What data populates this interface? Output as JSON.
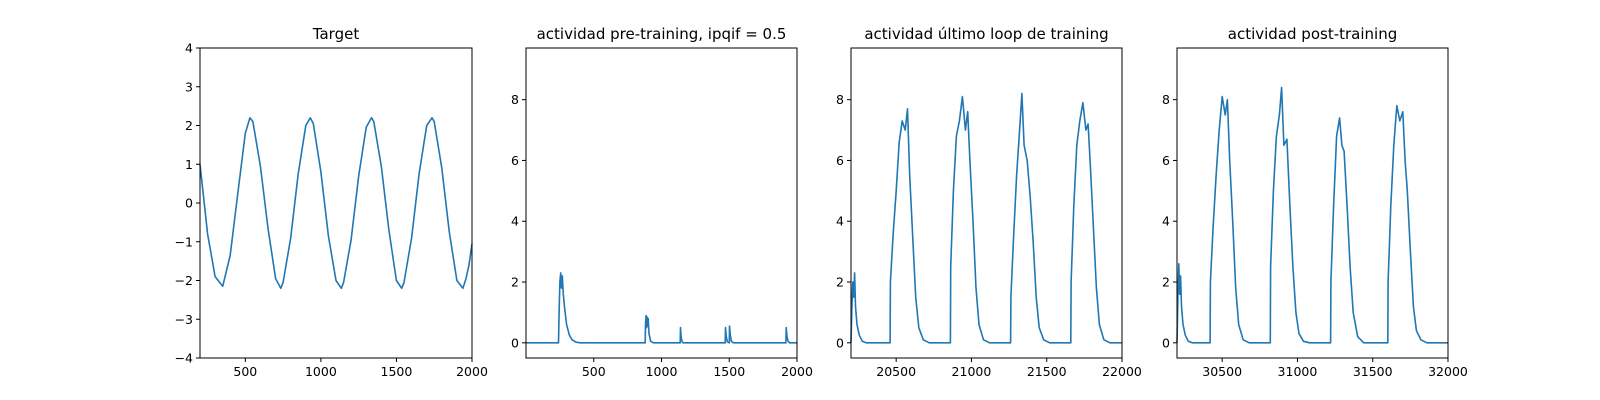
{
  "chart_data": [
    {
      "type": "line",
      "title": "Target",
      "xlim": [
        200,
        2000
      ],
      "ylim": [
        -4,
        4
      ],
      "xticks": [
        500,
        1000,
        1500,
        2000
      ],
      "yticks": [
        -4,
        -3,
        -2,
        -1,
        0,
        1,
        2,
        3,
        4
      ],
      "x": [
        200,
        250,
        300,
        350,
        400,
        450,
        500,
        530,
        550,
        600,
        650,
        700,
        735,
        750,
        800,
        850,
        900,
        930,
        950,
        1000,
        1050,
        1100,
        1135,
        1150,
        1200,
        1250,
        1300,
        1335,
        1350,
        1400,
        1450,
        1500,
        1535,
        1550,
        1600,
        1650,
        1700,
        1735,
        1750,
        1800,
        1850,
        1900,
        1940,
        1960,
        1980,
        2000
      ],
      "series": [
        {
          "color": "#1f77b4",
          "values": [
            1.0,
            -0.8,
            -1.9,
            -2.15,
            -1.35,
            0.25,
            1.8,
            2.2,
            2.1,
            0.95,
            -0.65,
            -1.95,
            -2.2,
            -2.05,
            -0.9,
            0.75,
            2.0,
            2.2,
            2.05,
            0.8,
            -0.85,
            -2.0,
            -2.2,
            -2.05,
            -0.95,
            0.7,
            1.95,
            2.2,
            2.1,
            0.95,
            -0.7,
            -2.0,
            -2.2,
            -2.05,
            -0.9,
            0.75,
            2.0,
            2.2,
            2.1,
            0.9,
            -0.75,
            -2.0,
            -2.2,
            -1.95,
            -1.6,
            -1.05
          ]
        }
      ]
    },
    {
      "type": "line",
      "title": "actividad pre-training, ipqif = 0.5",
      "xlim": [
        0,
        2000
      ],
      "ylim": [
        -0.5,
        9.7
      ],
      "xticks": [
        500,
        1000,
        1500,
        2000
      ],
      "yticks": [
        0,
        2,
        4,
        6,
        8
      ],
      "x": [
        0,
        240,
        244,
        250,
        256,
        262,
        268,
        275,
        285,
        300,
        320,
        340,
        370,
        400,
        440,
        880,
        882,
        886,
        890,
        894,
        898,
        902,
        908,
        920,
        940,
        1138,
        1140,
        1145,
        1152,
        1160,
        1470,
        1472,
        1478,
        1486,
        1500,
        1502,
        1508,
        1516,
        1530,
        1918,
        1920,
        1926,
        1934,
        1945,
        2000
      ],
      "series": [
        {
          "color": "#1f77b4",
          "values": [
            0,
            0,
            1.0,
            2.0,
            2.3,
            1.8,
            2.2,
            1.6,
            1.15,
            0.6,
            0.25,
            0.1,
            0.02,
            0,
            0,
            0,
            0.6,
            0.9,
            0.5,
            0.85,
            0.55,
            0.8,
            0.3,
            0.05,
            0,
            0,
            0.5,
            0.2,
            0.04,
            0,
            0,
            0.5,
            0.2,
            0.03,
            0,
            0.55,
            0.25,
            0.05,
            0,
            0,
            0.5,
            0.2,
            0.05,
            0,
            0
          ]
        }
      ]
    },
    {
      "type": "line",
      "title": "actividad último loop de training",
      "xlim": [
        20200,
        22000
      ],
      "ylim": [
        -0.5,
        9.7
      ],
      "xticks": [
        20500,
        21000,
        21500,
        22000
      ],
      "yticks": [
        0,
        2,
        4,
        6,
        8
      ],
      "x": [
        20200,
        20206,
        20212,
        20218,
        20224,
        20230,
        20240,
        20255,
        20275,
        20300,
        20460,
        20462,
        20480,
        20500,
        20520,
        20540,
        20560,
        20575,
        20590,
        20610,
        20630,
        20650,
        20680,
        20720,
        20860,
        20862,
        20880,
        20900,
        20920,
        20940,
        20960,
        20975,
        20990,
        21010,
        21030,
        21050,
        21080,
        21120,
        21260,
        21262,
        21280,
        21300,
        21320,
        21335,
        21350,
        21370,
        21390,
        21410,
        21430,
        21450,
        21480,
        21520,
        21660,
        21662,
        21680,
        21700,
        21720,
        21740,
        21760,
        21775,
        21790,
        21810,
        21830,
        21850,
        21880,
        21920,
        22000
      ],
      "series": [
        {
          "color": "#1f77b4",
          "values": [
            0,
            1.2,
            2.0,
            1.5,
            2.3,
            1.2,
            0.6,
            0.25,
            0.05,
            0,
            0,
            2.0,
            3.6,
            5.0,
            6.6,
            7.3,
            7.0,
            7.7,
            5.5,
            3.5,
            1.5,
            0.5,
            0.1,
            0,
            0,
            2.5,
            5.0,
            6.8,
            7.3,
            8.1,
            7.0,
            7.6,
            6.0,
            4.0,
            1.8,
            0.6,
            0.1,
            0,
            0,
            1.5,
            3.5,
            5.5,
            7.0,
            8.2,
            6.5,
            6.0,
            4.8,
            3.3,
            1.5,
            0.5,
            0.1,
            0,
            0,
            2.0,
            4.5,
            6.5,
            7.3,
            7.9,
            7.0,
            7.2,
            5.8,
            3.8,
            1.8,
            0.6,
            0.1,
            0,
            0
          ]
        }
      ]
    },
    {
      "type": "line",
      "title": "actividad post-training",
      "xlim": [
        30200,
        32000
      ],
      "ylim": [
        -0.5,
        9.7
      ],
      "xticks": [
        30500,
        31000,
        31500,
        32000
      ],
      "yticks": [
        0,
        2,
        4,
        6,
        8
      ],
      "x": [
        30200,
        30206,
        30212,
        30218,
        30224,
        30230,
        30240,
        30255,
        30275,
        30300,
        30420,
        30422,
        30440,
        30460,
        30480,
        30500,
        30520,
        30535,
        30550,
        30570,
        30590,
        30610,
        30640,
        30680,
        30820,
        30822,
        30840,
        30860,
        30880,
        30895,
        30910,
        30930,
        30950,
        30970,
        30990,
        31010,
        31040,
        31080,
        31220,
        31222,
        31240,
        31260,
        31280,
        31295,
        31310,
        31330,
        31350,
        31370,
        31400,
        31440,
        31600,
        31602,
        31620,
        31640,
        31660,
        31680,
        31700,
        31715,
        31730,
        31750,
        31770,
        31790,
        31820,
        31860,
        32000
      ],
      "series": [
        {
          "color": "#1f77b4",
          "values": [
            0,
            1.5,
            2.6,
            1.6,
            2.2,
            1.2,
            0.6,
            0.25,
            0.05,
            0,
            0,
            2.0,
            3.8,
            5.5,
            7.0,
            8.1,
            7.5,
            8.0,
            6.0,
            4.0,
            1.8,
            0.6,
            0.1,
            0,
            0,
            2.5,
            5.0,
            6.8,
            7.5,
            8.4,
            6.5,
            6.7,
            4.5,
            2.5,
            1.0,
            0.3,
            0.05,
            0,
            0,
            2.0,
            4.5,
            6.8,
            7.4,
            6.5,
            6.3,
            4.5,
            2.5,
            1.0,
            0.2,
            0,
            0,
            2.0,
            4.5,
            6.5,
            7.8,
            7.3,
            7.6,
            6.0,
            5.0,
            3.0,
            1.2,
            0.4,
            0.1,
            0,
            0
          ]
        }
      ]
    }
  ]
}
